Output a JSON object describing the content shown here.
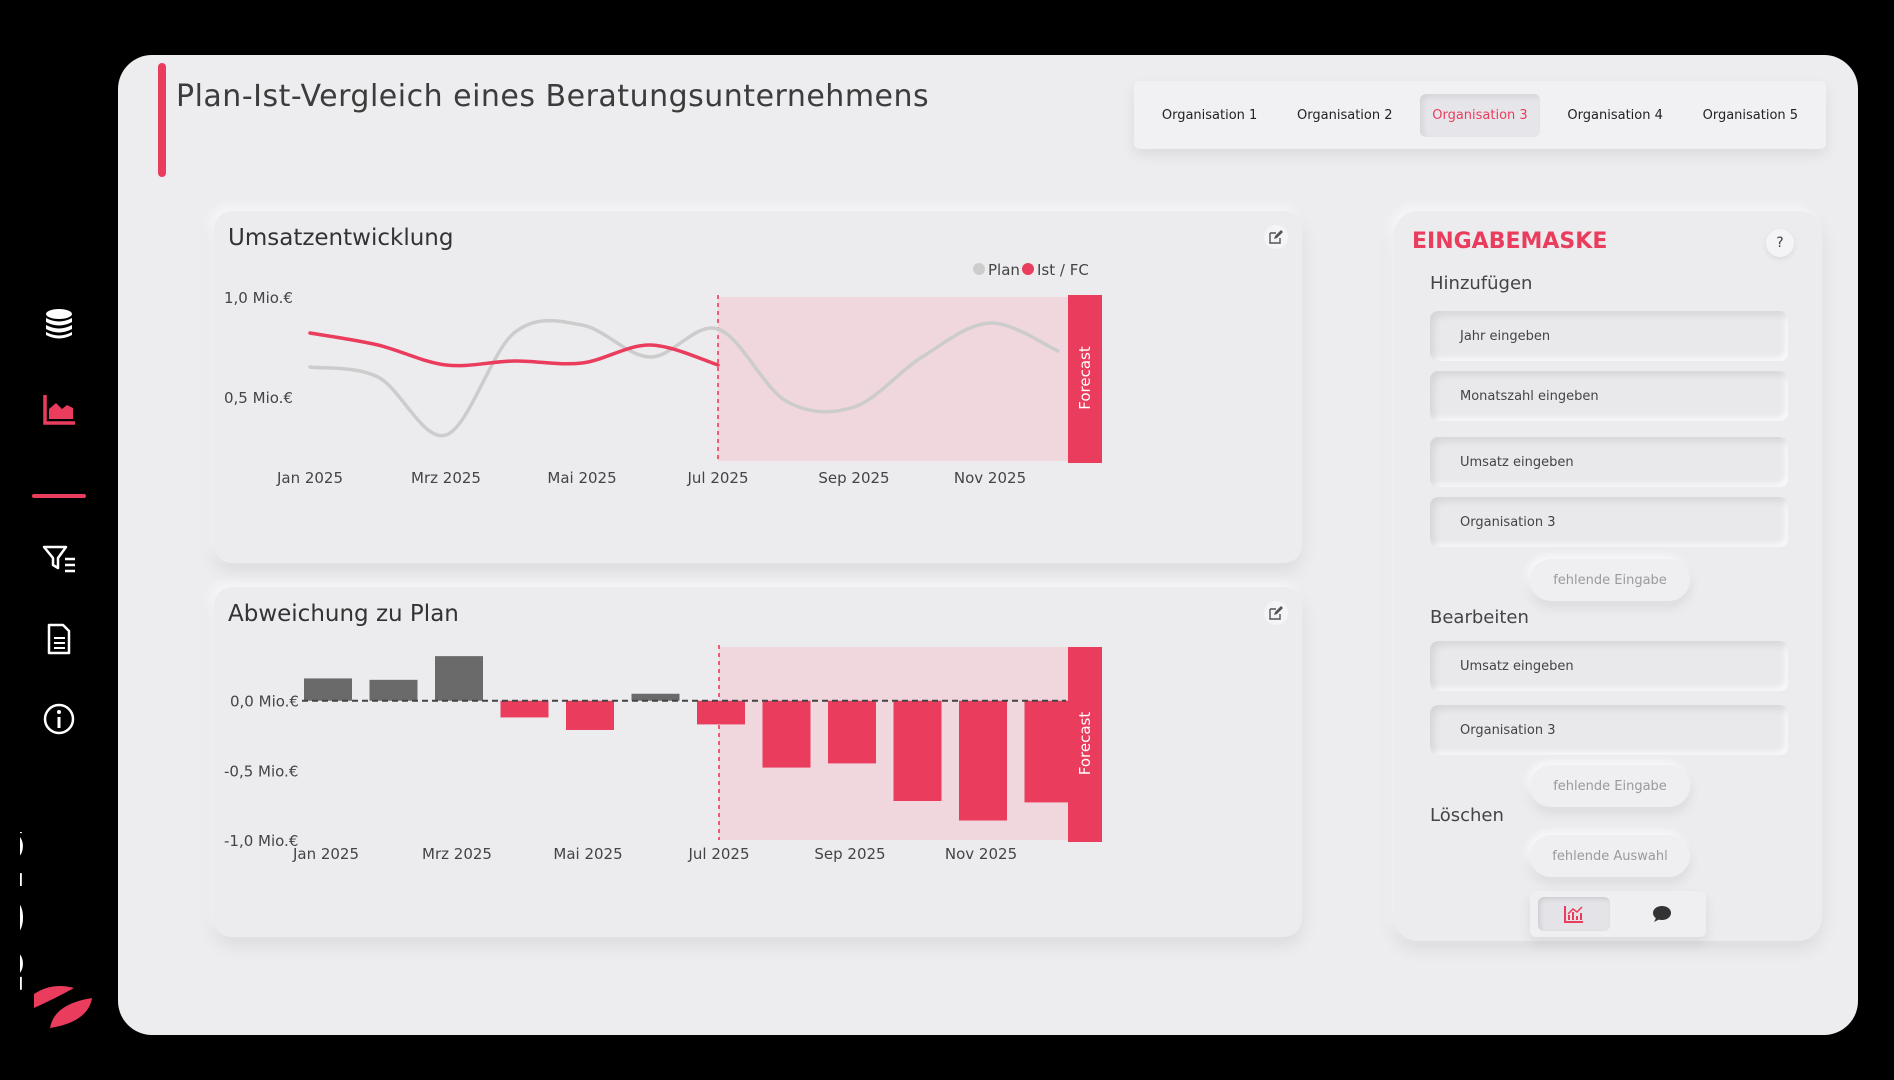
{
  "page_title": "Plan-Ist-Vergleich eines Beratungsunternehmens",
  "colors": {
    "accent": "#ea3c5c",
    "plan_line": "#cccccc",
    "bar_positive": "#6a6a6a",
    "forecast_bg": "#f0d6dd",
    "background": "#ededf0"
  },
  "tabs": [
    {
      "label": "Organisation 1",
      "active": false
    },
    {
      "label": "Organisation 2",
      "active": false
    },
    {
      "label": "Organisation 3",
      "active": true
    },
    {
      "label": "Organisation 4",
      "active": false
    },
    {
      "label": "Organisation 5",
      "active": false
    }
  ],
  "sidebar": {
    "icons": [
      "coins-icon",
      "area-chart-icon",
      "filter-list-icon",
      "document-icon",
      "info-icon"
    ],
    "logo_text": "bold"
  },
  "chart_data": [
    {
      "type": "line",
      "title": "Umsatzentwicklung",
      "legend": [
        "Plan",
        "Ist / FC"
      ],
      "legend_position": "top-right",
      "forecast_label": "Forecast",
      "forecast_start": "Jul 2025",
      "months": [
        "Jan 2025",
        "Feb 2025",
        "Mrz 2025",
        "Apr 2025",
        "Mai 2025",
        "Jun 2025",
        "Jul 2025",
        "Aug 2025",
        "Sep 2025",
        "Okt 2025",
        "Nov 2025",
        "Dez 2025"
      ],
      "x_tick_labels": [
        "Jan 2025",
        "Mrz 2025",
        "Mai 2025",
        "Jul 2025",
        "Sep 2025",
        "Nov 2025"
      ],
      "y_tick_labels": [
        "1,0 Mio.€",
        "0,5 Mio.€"
      ],
      "ylim": [
        0.18,
        1.0
      ],
      "series": [
        {
          "name": "Plan",
          "values": [
            0.65,
            0.6,
            0.31,
            0.82,
            0.86,
            0.7,
            0.84,
            0.48,
            0.45,
            0.7,
            0.87,
            0.73
          ]
        },
        {
          "name": "Ist / FC",
          "values": [
            0.82,
            0.76,
            0.66,
            0.68,
            0.67,
            0.76,
            0.66
          ]
        }
      ]
    },
    {
      "type": "bar",
      "title": "Abweichung zu Plan",
      "forecast_label": "Forecast",
      "forecast_start": "Jul 2025",
      "categories": [
        "Jan 2025",
        "Feb 2025",
        "Mrz 2025",
        "Apr 2025",
        "Mai 2025",
        "Jun 2025",
        "Jul 2025",
        "Aug 2025",
        "Sep 2025",
        "Okt 2025",
        "Nov 2025",
        "Dez 2025"
      ],
      "x_tick_labels": [
        "Jan 2025",
        "Mrz 2025",
        "Mai 2025",
        "Jul 2025",
        "Sep 2025",
        "Nov 2025"
      ],
      "y_tick_labels": [
        "0,0 Mio.€",
        "-0,5 Mio.€",
        "-1,0 Mio.€"
      ],
      "ylim": [
        -1.0,
        0.4
      ],
      "values": [
        0.16,
        0.15,
        0.32,
        -0.12,
        -0.21,
        0.05,
        -0.17,
        -0.48,
        -0.45,
        -0.72,
        -0.86,
        -0.73
      ]
    }
  ],
  "input_panel": {
    "title": "EINGABEMASKE",
    "help": "?",
    "add_section": "Hinzufügen",
    "add_fields": [
      "Jahr eingeben",
      "Monatszahl eingeben",
      "Umsatz eingeben",
      "Organisation 3"
    ],
    "add_button": "fehlende Eingabe",
    "edit_section": "Bearbeiten",
    "edit_fields": [
      "Umsatz eingeben",
      "Organisation 3"
    ],
    "edit_button": "fehlende Eingabe",
    "delete_section": "Löschen",
    "delete_button": "fehlende Auswahl",
    "toggle_icons": [
      "chart-icon",
      "chat-icon"
    ]
  }
}
